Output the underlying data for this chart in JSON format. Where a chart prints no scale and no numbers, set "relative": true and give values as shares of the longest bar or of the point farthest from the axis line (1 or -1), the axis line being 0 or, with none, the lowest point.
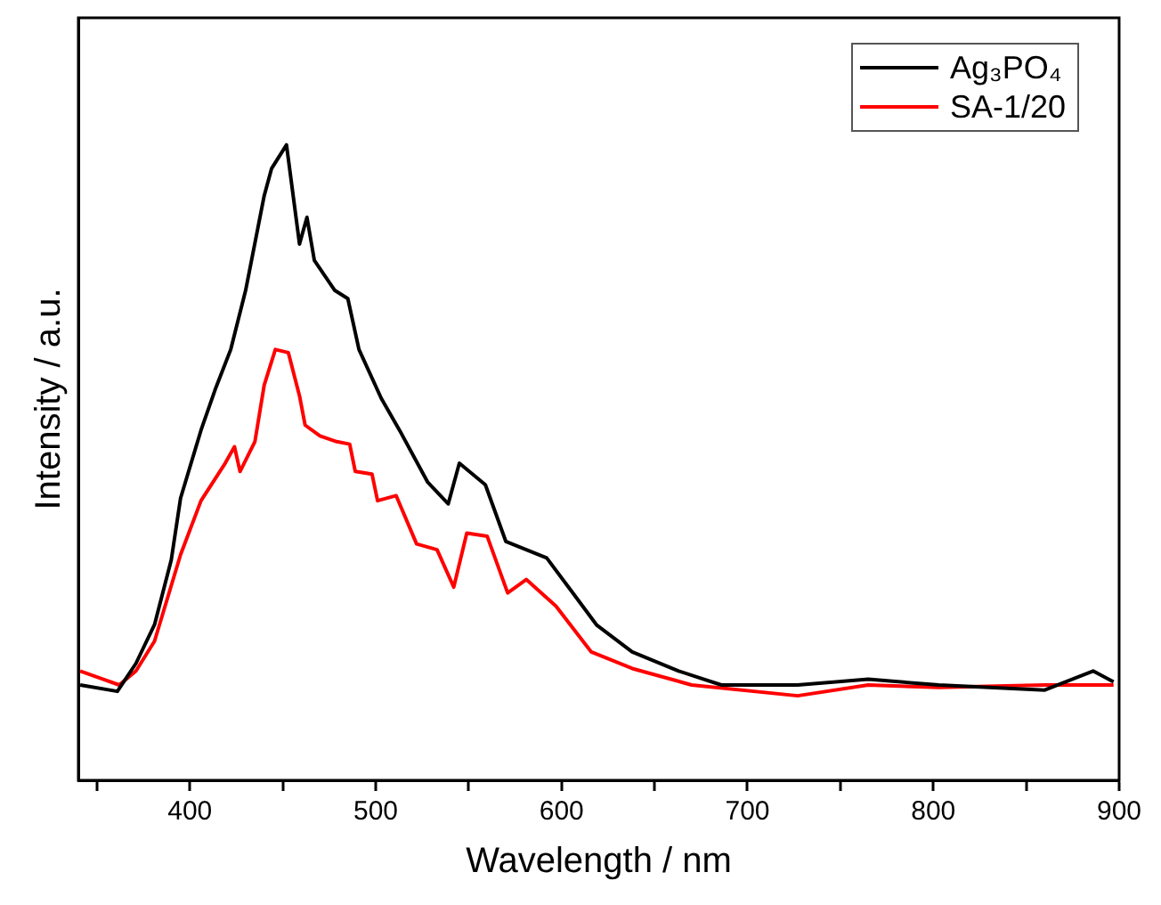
{
  "chart_data": {
    "type": "line",
    "xlabel": "Wavelength / nm",
    "ylabel": "Intensity / a.u.",
    "relative": true,
    "xlim": [
      340,
      900
    ],
    "xticks": [
      {
        "value": 350,
        "label": null
      },
      400,
      {
        "value": 450,
        "label": null
      },
      500,
      {
        "value": 550,
        "label": null
      },
      600,
      {
        "value": 650,
        "label": null
      },
      700,
      {
        "value": 750,
        "label": null
      },
      800,
      {
        "value": 850,
        "label": null
      },
      900
    ],
    "grid": false,
    "legend": "top right",
    "marker": "none",
    "line_style": "solid",
    "series": [
      {
        "name": "Ag₃PO₄",
        "color": "#000000",
        "x": [
          341,
          361,
          371,
          381,
          390,
          395,
          406,
          414,
          422,
          430,
          440,
          444,
          452,
          459,
          463,
          467,
          478,
          485,
          491,
          503,
          513,
          528,
          539,
          545,
          559,
          570,
          592,
          606,
          619,
          638,
          663,
          686,
          727,
          765,
          803,
          860,
          886,
          897
        ],
        "values": [
          0.15,
          0.14,
          0.184,
          0.245,
          0.347,
          0.444,
          0.551,
          0.618,
          0.678,
          0.771,
          0.92,
          0.963,
          1.0,
          0.844,
          0.886,
          0.818,
          0.771,
          0.758,
          0.678,
          0.601,
          0.55,
          0.469,
          0.435,
          0.499,
          0.465,
          0.376,
          0.35,
          0.295,
          0.244,
          0.202,
          0.172,
          0.15,
          0.15,
          0.159,
          0.15,
          0.142,
          0.172,
          0.155
        ]
      },
      {
        "name": "SA-1/20",
        "color": "#ff0000",
        "x": [
          341,
          362,
          371,
          381,
          395,
          406,
          419,
          424,
          427,
          435,
          440,
          446,
          453,
          459,
          462,
          470,
          479,
          486,
          489,
          498,
          501,
          511,
          522,
          533,
          542,
          549,
          560,
          571,
          581,
          597,
          616,
          638,
          670,
          727,
          765,
          803,
          860,
          897
        ],
        "values": [
          0.172,
          0.15,
          0.172,
          0.219,
          0.355,
          0.44,
          0.499,
          0.525,
          0.486,
          0.533,
          0.622,
          0.678,
          0.673,
          0.605,
          0.559,
          0.542,
          0.533,
          0.529,
          0.486,
          0.482,
          0.44,
          0.448,
          0.372,
          0.363,
          0.304,
          0.389,
          0.384,
          0.295,
          0.316,
          0.274,
          0.202,
          0.176,
          0.15,
          0.133,
          0.15,
          0.146,
          0.15,
          0.15
        ]
      }
    ]
  }
}
